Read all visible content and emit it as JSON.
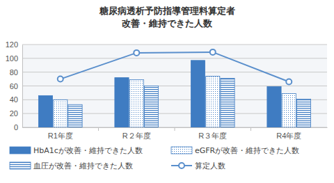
{
  "chart_data": {
    "type": "bar",
    "title": [
      "糖尿病透析予防指導管理料算定者",
      "改善・維持できた人数"
    ],
    "categories": [
      "R1年度",
      "R２年度",
      "R３年度",
      "R4年度"
    ],
    "series": [
      {
        "name": "HbA1cが改善・維持できた人数",
        "type": "bar",
        "color": "#3f7cc2",
        "values": [
          46,
          72,
          97,
          59
        ]
      },
      {
        "name": "eGFRが改善・維持できた人数",
        "type": "bar",
        "color": "#3f7cc2",
        "values": [
          40,
          69,
          74,
          49
        ]
      },
      {
        "name": "血圧が改善・維持できた人数",
        "type": "bar",
        "color": "#3f7cc2",
        "values": [
          33,
          60,
          71,
          41
        ]
      },
      {
        "name": "算定人数",
        "type": "line",
        "color": "#5a8fcc",
        "marker": "circle",
        "line_style": "solid",
        "values": [
          70,
          108,
          109,
          66
        ]
      }
    ],
    "ylim": [
      0,
      120
    ],
    "yticks": [
      0,
      20,
      40,
      60,
      80,
      100,
      120
    ],
    "grid": true,
    "legend": "bottom"
  }
}
